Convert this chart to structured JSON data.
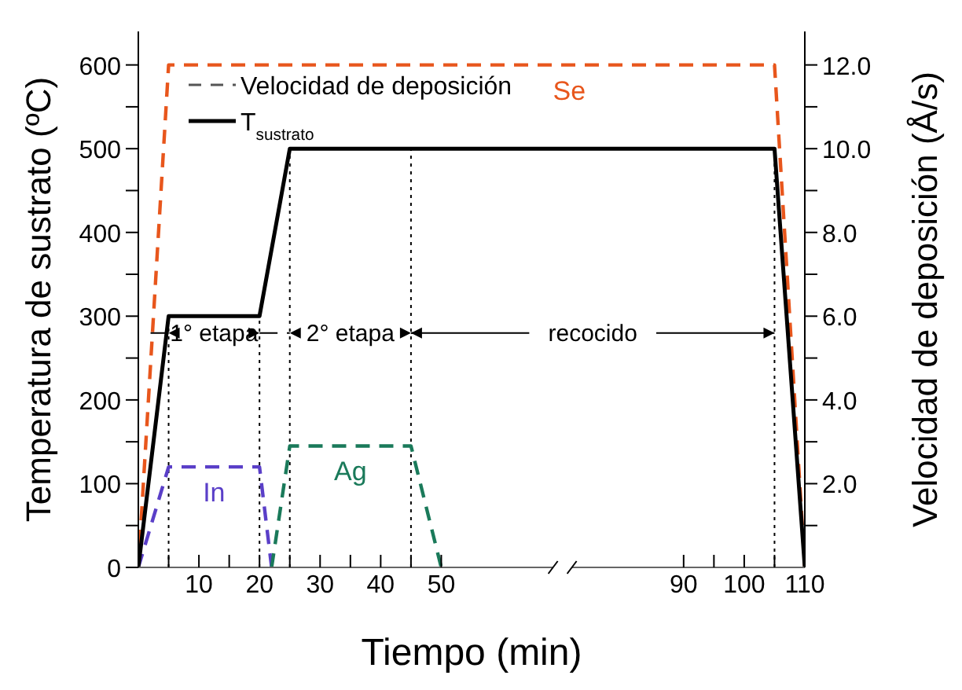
{
  "chart_data": {
    "type": "line",
    "xlabel": "Tiempo (min)",
    "ylabel": "Temperatura de sustrato (ºC)",
    "y2label": "Velocidad de deposición (Å/s)",
    "series": [
      {
        "name": "Se",
        "color": "#e8561c",
        "axis": "y2",
        "line_style": "dashed",
        "x": [
          0,
          5,
          105,
          110
        ],
        "values": [
          0,
          12,
          12,
          0
        ]
      },
      {
        "name": "In",
        "color": "#5a3fc8",
        "axis": "y2",
        "line_style": "dashed",
        "x": [
          0,
          5,
          20,
          22
        ],
        "values": [
          0,
          2.4,
          2.4,
          0
        ]
      },
      {
        "name": "Ag",
        "color": "#1a7a5a",
        "axis": "y2",
        "line_style": "dashed",
        "x": [
          22,
          25,
          45,
          50
        ],
        "values": [
          0,
          2.9,
          2.9,
          0
        ]
      },
      {
        "name": "T$_{sustrato}$",
        "color": "#000000",
        "axis": "y",
        "line_style": "solid",
        "x": [
          0,
          5,
          20,
          25,
          105,
          110
        ],
        "values": [
          0,
          300,
          300,
          500,
          500,
          0
        ]
      }
    ],
    "xlim": [
      0,
      110
    ],
    "xticks": [
      {
        "value": 5,
        "label": null
      },
      10,
      {
        "value": 15,
        "label": null
      },
      20,
      {
        "value": 25,
        "label": null
      },
      30,
      {
        "value": 35,
        "label": null
      },
      40,
      {
        "value": 45,
        "label": null
      },
      50,
      90,
      {
        "value": 95,
        "label": null
      },
      100,
      {
        "value": 105,
        "label": null
      },
      110
    ],
    "ylim": [
      0,
      640
    ],
    "yticks": [
      0,
      {
        "value": 50,
        "label": null
      },
      100,
      {
        "value": 150,
        "label": null
      },
      200,
      {
        "value": 250,
        "label": null
      },
      300,
      {
        "value": 350,
        "label": null
      },
      400,
      {
        "value": 450,
        "label": null
      },
      500,
      {
        "value": 550,
        "label": null
      },
      600
    ],
    "y2lim": [
      0,
      12.8
    ],
    "y2ticks": [
      {
        "value": 1,
        "label": null
      },
      {
        "value": 2,
        "label": "2.0"
      },
      {
        "value": 3,
        "label": null
      },
      {
        "value": 4,
        "label": "4.0"
      },
      {
        "value": 5,
        "label": null
      },
      {
        "value": 6,
        "label": "6.0"
      },
      {
        "value": 7,
        "label": null
      },
      {
        "value": 8,
        "label": "8.0"
      },
      {
        "value": 9,
        "label": null
      },
      {
        "value": 10,
        "label": "10.0"
      },
      {
        "value": 11,
        "label": null
      },
      {
        "value": 12,
        "label": "12.0"
      }
    ],
    "ref_lines": [
      {
        "axis": "x",
        "value": 5,
        "line_style": "dotted"
      },
      {
        "axis": "x",
        "value": 20,
        "line_style": "dotted"
      },
      {
        "axis": "x",
        "value": 25,
        "line_style": "dotted"
      },
      {
        "axis": "x",
        "value": 45,
        "line_style": "dotted"
      },
      {
        "axis": "x",
        "value": 105,
        "line_style": "dotted"
      }
    ],
    "annotations": [
      "Velocidad de deposición",
      {
        "text": "1° etapa",
        "x": 5,
        "y": 280
      },
      {
        "text": "2° etapa",
        "x": 25,
        "y": 280
      },
      {
        "text": "recocido",
        "x": 45,
        "y": 280
      }
    ],
    "legend": "top left",
    "grid": false,
    "marker": "none"
  }
}
